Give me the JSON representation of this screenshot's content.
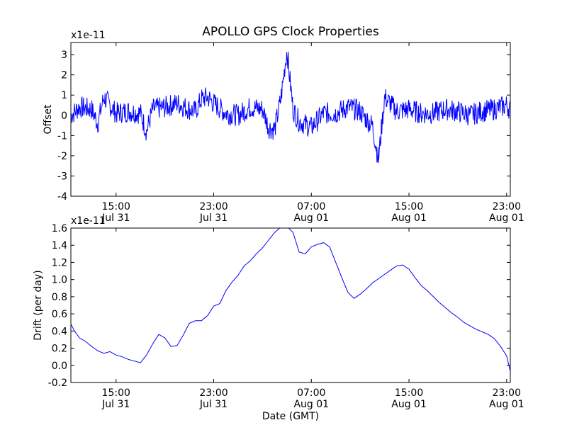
{
  "figure": {
    "title": "APOLLO GPS Clock Properties"
  },
  "chart_data": [
    {
      "type": "line",
      "title": "APOLLO GPS Clock Properties",
      "xlabel": "",
      "ylabel": "Offset",
      "multiplier_label": "x1e-11",
      "ylim": [
        -4,
        3.6
      ],
      "yticks": [
        -4,
        -3,
        -2,
        -1,
        0,
        1,
        2,
        3
      ],
      "xlim_hours": [
        11.3,
        47.3
      ],
      "xticks": [
        {
          "hour": 15,
          "time": "15:00",
          "date": "Jul 31"
        },
        {
          "hour": 23,
          "time": "23:00",
          "date": "Jul 31"
        },
        {
          "hour": 31,
          "time": "07:00",
          "date": "Aug 01"
        },
        {
          "hour": 39,
          "time": "15:00",
          "date": "Aug 01"
        },
        {
          "hour": 47,
          "time": "23:00",
          "date": "Aug 01"
        }
      ],
      "grid": false,
      "line_color": "#0000ff",
      "series": [
        {
          "x": [
            11.3,
            12.0,
            13.0,
            13.5,
            14.0,
            15.0,
            16.0,
            17.0,
            17.5,
            18.0,
            19.0,
            20.0,
            21.0,
            21.5,
            22.0,
            22.5,
            23.0,
            24.0,
            25.0,
            26.0,
            27.0,
            27.5,
            28.0,
            28.5,
            29.0,
            29.5,
            30.0,
            31.0,
            32.0,
            33.0,
            34.0,
            35.0,
            35.5,
            36.0,
            36.5,
            37.0,
            38.0,
            39.0,
            40.0,
            41.0,
            42.0,
            43.0,
            44.0,
            45.0,
            46.0,
            47.0,
            47.3
          ],
          "y": [
            0.0,
            0.4,
            0.3,
            -0.4,
            0.9,
            0.1,
            0.2,
            0.1,
            -0.8,
            0.3,
            0.4,
            0.6,
            0.3,
            0.2,
            0.8,
            0.9,
            0.6,
            0.1,
            0.0,
            0.4,
            0.3,
            -0.6,
            -0.7,
            0.8,
            3.2,
            0.3,
            -0.3,
            -0.6,
            0.1,
            0.1,
            0.4,
            0.2,
            -0.2,
            -0.5,
            -2.2,
            0.9,
            0.2,
            0.3,
            0.1,
            0.1,
            0.3,
            0.2,
            0.0,
            0.2,
            0.3,
            0.5,
            0.3
          ]
        }
      ]
    },
    {
      "type": "line",
      "title": "",
      "xlabel": "Date (GMT)",
      "ylabel": "Drift (per day)",
      "multiplier_label": "x1e-11",
      "ylim": [
        -0.2,
        1.6
      ],
      "yticks": [
        -0.2,
        0.0,
        0.2,
        0.4,
        0.6,
        0.8,
        1.0,
        1.2,
        1.4,
        1.6
      ],
      "ytick_labels": [
        "-0.2",
        "0.0",
        "0.2",
        "0.4",
        "0.6",
        "0.8",
        "1.0",
        "1.2",
        "1.4",
        "1.6"
      ],
      "xlim_hours": [
        11.3,
        47.3
      ],
      "xticks": [
        {
          "hour": 15,
          "time": "15:00",
          "date": "Jul 31"
        },
        {
          "hour": 23,
          "time": "23:00",
          "date": "Jul 31"
        },
        {
          "hour": 31,
          "time": "07:00",
          "date": "Aug 01"
        },
        {
          "hour": 39,
          "time": "15:00",
          "date": "Aug 01"
        },
        {
          "hour": 47,
          "time": "23:00",
          "date": "Aug 01"
        }
      ],
      "grid": false,
      "line_color": "#0000ff",
      "series": [
        {
          "x": [
            11.3,
            11.6,
            12.0,
            12.5,
            13.0,
            13.5,
            14.0,
            14.5,
            15.0,
            15.5,
            16.0,
            16.5,
            17.0,
            17.5,
            18.0,
            18.5,
            19.0,
            19.5,
            20.0,
            20.5,
            21.0,
            21.5,
            22.0,
            22.5,
            23.0,
            23.5,
            24.0,
            24.5,
            25.0,
            25.5,
            26.0,
            26.5,
            27.0,
            27.5,
            28.0,
            28.5,
            29.0,
            29.5,
            30.0,
            30.5,
            31.0,
            31.5,
            32.0,
            32.5,
            33.0,
            33.5,
            34.0,
            34.5,
            35.0,
            35.5,
            36.0,
            36.5,
            37.0,
            37.5,
            38.0,
            38.5,
            39.0,
            39.5,
            40.0,
            40.5,
            41.0,
            41.5,
            42.0,
            42.5,
            43.0,
            43.5,
            44.0,
            44.5,
            45.0,
            45.5,
            46.0,
            46.5,
            47.0,
            47.3
          ],
          "y": [
            0.48,
            0.4,
            0.32,
            0.28,
            0.22,
            0.17,
            0.14,
            0.16,
            0.12,
            0.1,
            0.07,
            0.05,
            0.03,
            0.12,
            0.25,
            0.36,
            0.32,
            0.22,
            0.23,
            0.35,
            0.49,
            0.52,
            0.52,
            0.58,
            0.69,
            0.72,
            0.87,
            0.97,
            1.05,
            1.16,
            1.22,
            1.3,
            1.37,
            1.46,
            1.55,
            1.61,
            1.62,
            1.55,
            1.32,
            1.3,
            1.38,
            1.41,
            1.43,
            1.38,
            1.2,
            1.02,
            0.85,
            0.78,
            0.83,
            0.89,
            0.96,
            1.01,
            1.06,
            1.11,
            1.16,
            1.17,
            1.12,
            1.02,
            0.93,
            0.87,
            0.8,
            0.73,
            0.67,
            0.61,
            0.56,
            0.5,
            0.46,
            0.42,
            0.39,
            0.36,
            0.31,
            0.22,
            0.11,
            -0.07
          ]
        }
      ]
    }
  ]
}
